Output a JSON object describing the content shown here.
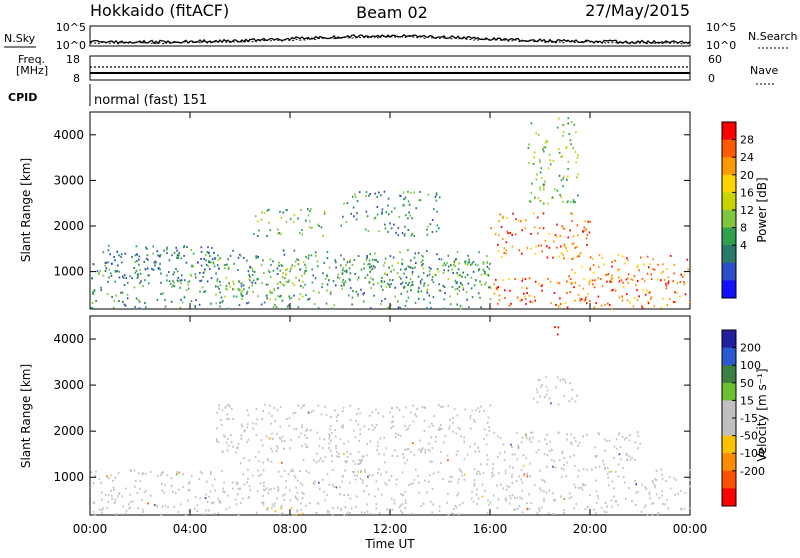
{
  "header": {
    "station": "Hokkaido (fitACF)",
    "beam": "Beam 02",
    "date": "27/May/2015"
  },
  "top_strip": {
    "left_label": "N.Sky",
    "right_label": "N.Search",
    "left_ticks": [
      "10^5",
      "10^0"
    ],
    "right_ticks": [
      "10^5",
      "10^0"
    ]
  },
  "freq_strip": {
    "label_line1": "Freq.",
    "label_line2": "[MHz]",
    "left_ticks": [
      "18",
      "8"
    ],
    "right_ticks": [
      "60",
      "0"
    ],
    "right_label": "Nave"
  },
  "cpid": {
    "label": "CPID",
    "text": "normal (fast) 151"
  },
  "axes": {
    "ylabel": "Slant Range [km]",
    "xlabel": "Time UT",
    "y_ticks": [
      "4000",
      "3000",
      "2000",
      "1000"
    ],
    "x_ticks": [
      "00:00",
      "04:00",
      "08:00",
      "12:00",
      "16:00",
      "20:00",
      "00:00"
    ]
  },
  "power_bar": {
    "label": "Power [dB]",
    "ticks": [
      "28",
      "24",
      "20",
      "16",
      "12",
      "8",
      "4"
    ],
    "colors": [
      "#ff0000",
      "#ff5a00",
      "#ff9a00",
      "#ffd400",
      "#c8d400",
      "#7fc640",
      "#2ea04e",
      "#2a7a6a",
      "#2a4ec8",
      "#1010ff"
    ]
  },
  "velocity_bar": {
    "label": "Velocity [m s⁻¹]",
    "ticks": [
      "200",
      "100",
      "50",
      "15",
      "-15",
      "-50",
      "-100",
      "-200"
    ],
    "colors": [
      "#2020a0",
      "#2a5ad0",
      "#3a8040",
      "#6ac030",
      "#c0c0c0",
      "#c0c0c0",
      "#ffc000",
      "#ff8c00",
      "#ff5000",
      "#ff0000"
    ]
  },
  "chart_data": [
    {
      "type": "heatmap",
      "name": "power",
      "x_range": [
        "00:00",
        "24:00"
      ],
      "ylim": [
        180,
        4500
      ],
      "cbar_range_dB": [
        0,
        32
      ],
      "regions": [
        {
          "t": [
            0.0,
            16.0
          ],
          "r": [
            200,
            1500
          ],
          "value_dB": 10
        },
        {
          "t": [
            0.5,
            5.0
          ],
          "r": [
            800,
            1600
          ],
          "value_dB": 8
        },
        {
          "t": [
            5.0,
            9.0
          ],
          "r": [
            400,
            1300
          ],
          "value_dB": 14
        },
        {
          "t": [
            6.5,
            9.5
          ],
          "r": [
            1800,
            2400
          ],
          "value_dB": 12
        },
        {
          "t": [
            9.5,
            16.0
          ],
          "r": [
            600,
            1300
          ],
          "value_dB": 12
        },
        {
          "t": [
            10.0,
            14.0
          ],
          "r": [
            1800,
            2800
          ],
          "value_dB": 10
        },
        {
          "t": [
            16.0,
            24.0
          ],
          "r": [
            200,
            900
          ],
          "value_dB": 26
        },
        {
          "t": [
            16.0,
            20.0
          ],
          "r": [
            1300,
            2300
          ],
          "value_dB": 26
        },
        {
          "t": [
            19.0,
            24.0
          ],
          "r": [
            700,
            1400
          ],
          "value_dB": 25
        },
        {
          "t": [
            17.5,
            19.5
          ],
          "r": [
            2500,
            4400
          ],
          "value_dB": 14
        }
      ]
    },
    {
      "type": "heatmap",
      "name": "velocity",
      "x_range": [
        "00:00",
        "24:00"
      ],
      "ylim": [
        180,
        4500
      ],
      "cbar_range_ms": [
        -250,
        250
      ],
      "regions": [
        {
          "t": [
            0.0,
            24.0
          ],
          "r": [
            200,
            1200
          ],
          "value_ms": 0
        },
        {
          "t": [
            5.0,
            16.0
          ],
          "r": [
            1300,
            2600
          ],
          "value_ms": 0
        },
        {
          "t": [
            16.0,
            22.0
          ],
          "r": [
            1200,
            2000
          ],
          "value_ms": -5
        },
        {
          "t": [
            7.0,
            8.5
          ],
          "r": [
            200,
            400
          ],
          "value_ms": -60
        },
        {
          "t": [
            10.0,
            11.5
          ],
          "r": [
            250,
            450
          ],
          "value_ms": 30
        },
        {
          "t": [
            18.5,
            19.0
          ],
          "r": [
            4100,
            4300
          ],
          "value_ms": -220
        },
        {
          "t": [
            17.5,
            19.5
          ],
          "r": [
            2600,
            3200
          ],
          "value_ms": 40
        }
      ]
    }
  ]
}
